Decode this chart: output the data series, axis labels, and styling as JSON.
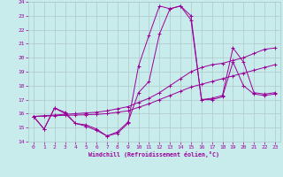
{
  "xlabel": "Windchill (Refroidissement éolien,°C)",
  "bg_color": "#c8ecec",
  "grid_color": "#b0c8c8",
  "line_color": "#990099",
  "xlim": [
    -0.5,
    23.5
  ],
  "ylim": [
    14,
    24
  ],
  "yticks": [
    14,
    15,
    16,
    17,
    18,
    19,
    20,
    21,
    22,
    23,
    24
  ],
  "xticks": [
    0,
    1,
    2,
    3,
    4,
    5,
    6,
    7,
    8,
    9,
    10,
    11,
    12,
    13,
    14,
    15,
    16,
    17,
    18,
    19,
    20,
    21,
    22,
    23
  ],
  "series": [
    {
      "x": [
        0,
        1,
        2,
        3,
        4,
        5,
        6,
        7,
        8,
        9,
        10,
        11,
        12,
        13,
        14,
        15,
        16,
        17,
        18,
        19,
        20,
        21,
        22,
        23
      ],
      "y": [
        15.8,
        14.9,
        16.4,
        16.0,
        15.3,
        15.1,
        14.8,
        14.4,
        14.6,
        15.3,
        19.4,
        21.6,
        23.7,
        23.5,
        23.7,
        23.0,
        17.0,
        17.0,
        17.2,
        19.7,
        18.0,
        17.4,
        17.3,
        17.4
      ]
    },
    {
      "x": [
        0,
        1,
        2,
        3,
        4,
        5,
        6,
        7,
        8,
        9,
        10,
        11,
        12,
        13,
        14,
        15,
        16,
        17,
        18,
        19,
        20,
        21,
        22,
        23
      ],
      "y": [
        15.8,
        14.9,
        16.4,
        16.1,
        15.3,
        15.2,
        14.9,
        14.4,
        14.7,
        15.4,
        17.5,
        18.3,
        21.7,
        23.5,
        23.7,
        22.7,
        17.0,
        17.1,
        17.3,
        20.7,
        19.7,
        17.5,
        17.4,
        17.5
      ]
    },
    {
      "x": [
        0,
        1,
        2,
        3,
        4,
        5,
        6,
        7,
        8,
        9,
        10,
        11,
        12,
        13,
        14,
        15,
        16,
        17,
        18,
        19,
        20,
        21,
        22,
        23
      ],
      "y": [
        15.8,
        15.85,
        15.9,
        15.95,
        16.0,
        16.05,
        16.1,
        16.2,
        16.35,
        16.5,
        16.8,
        17.1,
        17.5,
        18.0,
        18.5,
        19.0,
        19.3,
        19.5,
        19.6,
        19.8,
        20.0,
        20.3,
        20.6,
        20.7
      ]
    },
    {
      "x": [
        0,
        1,
        2,
        3,
        4,
        5,
        6,
        7,
        8,
        9,
        10,
        11,
        12,
        13,
        14,
        15,
        16,
        17,
        18,
        19,
        20,
        21,
        22,
        23
      ],
      "y": [
        15.8,
        15.82,
        15.85,
        15.88,
        15.9,
        15.92,
        15.95,
        16.0,
        16.1,
        16.2,
        16.45,
        16.7,
        17.0,
        17.3,
        17.6,
        17.9,
        18.1,
        18.3,
        18.5,
        18.7,
        18.9,
        19.1,
        19.3,
        19.5
      ]
    }
  ]
}
